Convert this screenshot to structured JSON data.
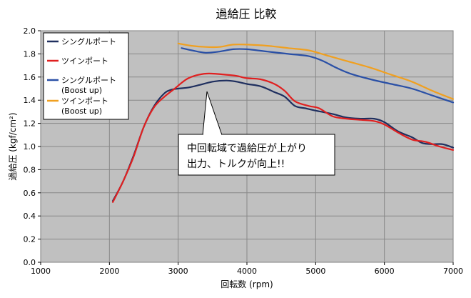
{
  "chart_data": {
    "type": "line",
    "title": "過給圧 比較",
    "xlabel": "回転数 (rpm)",
    "ylabel": "過給圧 (kgf/cm²)",
    "xlim": [
      1000,
      7000
    ],
    "ylim": [
      0.0,
      2.0
    ],
    "x_ticks": [
      "1000",
      "2000",
      "3000",
      "4000",
      "5000",
      "6000",
      "7000"
    ],
    "y_ticks": [
      "0.0",
      "0.2",
      "0.4",
      "0.6",
      "0.8",
      "1.0",
      "1.2",
      "1.4",
      "1.6",
      "1.8",
      "2.0"
    ],
    "grid": true,
    "plot_background": "#c0c0c0",
    "legend_position": "top-left",
    "series": [
      {
        "name": "シングルポート",
        "color": "#1f2f5f",
        "points": [
          [
            2050,
            0.53
          ],
          [
            2200,
            0.7
          ],
          [
            2350,
            0.92
          ],
          [
            2500,
            1.17
          ],
          [
            2650,
            1.35
          ],
          [
            2800,
            1.46
          ],
          [
            2900,
            1.49
          ],
          [
            3000,
            1.5
          ],
          [
            3150,
            1.51
          ],
          [
            3300,
            1.53
          ],
          [
            3500,
            1.56
          ],
          [
            3700,
            1.57
          ],
          [
            3850,
            1.56
          ],
          [
            4000,
            1.54
          ],
          [
            4200,
            1.52
          ],
          [
            4400,
            1.47
          ],
          [
            4550,
            1.43
          ],
          [
            4700,
            1.35
          ],
          [
            4850,
            1.33
          ],
          [
            5000,
            1.31
          ],
          [
            5250,
            1.28
          ],
          [
            5450,
            1.25
          ],
          [
            5650,
            1.24
          ],
          [
            5850,
            1.24
          ],
          [
            6000,
            1.21
          ],
          [
            6200,
            1.13
          ],
          [
            6400,
            1.08
          ],
          [
            6550,
            1.03
          ],
          [
            6700,
            1.02
          ],
          [
            6850,
            1.02
          ],
          [
            7000,
            0.99
          ]
        ]
      },
      {
        "name": "ツインポート",
        "color": "#e02020",
        "points": [
          [
            2050,
            0.52
          ],
          [
            2200,
            0.7
          ],
          [
            2350,
            0.91
          ],
          [
            2500,
            1.17
          ],
          [
            2650,
            1.34
          ],
          [
            2800,
            1.43
          ],
          [
            2950,
            1.5
          ],
          [
            3050,
            1.55
          ],
          [
            3150,
            1.59
          ],
          [
            3300,
            1.62
          ],
          [
            3450,
            1.63
          ],
          [
            3700,
            1.62
          ],
          [
            3850,
            1.61
          ],
          [
            4000,
            1.59
          ],
          [
            4200,
            1.58
          ],
          [
            4400,
            1.54
          ],
          [
            4550,
            1.48
          ],
          [
            4700,
            1.39
          ],
          [
            4900,
            1.35
          ],
          [
            5050,
            1.33
          ],
          [
            5250,
            1.26
          ],
          [
            5450,
            1.24
          ],
          [
            5650,
            1.23
          ],
          [
            5850,
            1.22
          ],
          [
            6000,
            1.19
          ],
          [
            6200,
            1.12
          ],
          [
            6400,
            1.06
          ],
          [
            6600,
            1.04
          ],
          [
            6800,
            1.0
          ],
          [
            7000,
            0.97
          ]
        ]
      },
      {
        "name": "シングルポート (Boost up)",
        "color": "#2a50a6",
        "points": [
          [
            3050,
            1.85
          ],
          [
            3200,
            1.83
          ],
          [
            3400,
            1.81
          ],
          [
            3600,
            1.82
          ],
          [
            3800,
            1.84
          ],
          [
            4000,
            1.84
          ],
          [
            4300,
            1.82
          ],
          [
            4600,
            1.8
          ],
          [
            4900,
            1.78
          ],
          [
            5100,
            1.74
          ],
          [
            5300,
            1.68
          ],
          [
            5500,
            1.63
          ],
          [
            5800,
            1.58
          ],
          [
            6100,
            1.54
          ],
          [
            6400,
            1.5
          ],
          [
            6700,
            1.44
          ],
          [
            7000,
            1.38
          ]
        ]
      },
      {
        "name": "ツインポート (Boost up)",
        "color": "#f0a020",
        "points": [
          [
            3000,
            1.89
          ],
          [
            3200,
            1.87
          ],
          [
            3400,
            1.86
          ],
          [
            3600,
            1.86
          ],
          [
            3800,
            1.88
          ],
          [
            4000,
            1.88
          ],
          [
            4300,
            1.87
          ],
          [
            4600,
            1.85
          ],
          [
            4900,
            1.83
          ],
          [
            5200,
            1.78
          ],
          [
            5500,
            1.73
          ],
          [
            5800,
            1.68
          ],
          [
            6100,
            1.62
          ],
          [
            6400,
            1.56
          ],
          [
            6700,
            1.48
          ],
          [
            7000,
            1.41
          ]
        ]
      }
    ],
    "annotation": {
      "lines": [
        "中回転域で過給圧が上がり",
        "出力、トルクが向上!!"
      ],
      "points_to": [
        3400,
        1.56
      ]
    }
  }
}
